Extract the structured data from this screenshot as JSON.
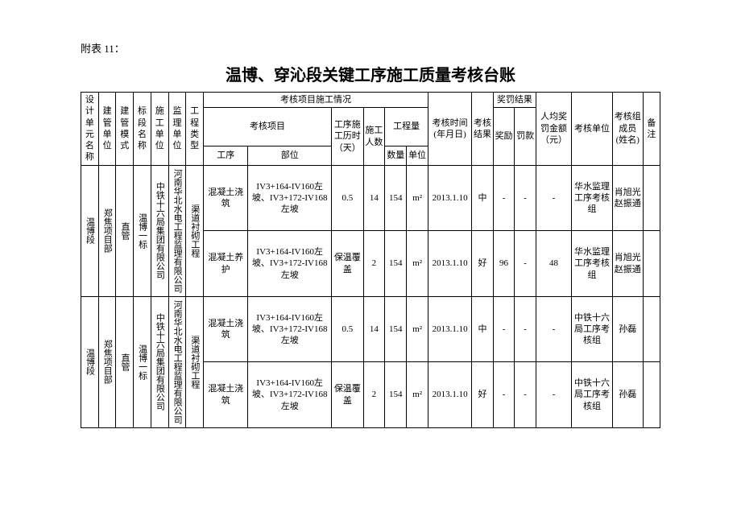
{
  "attachment": "附表 11：",
  "title": "温博、穿沁段关键工序施工质量考核台账",
  "headers": {
    "c1": "设计单元名称",
    "c2": "建管单位",
    "c3": "建管模式",
    "c4": "标段名称",
    "c5": "施工单位",
    "c6": "监理单位",
    "c7": "工程类型",
    "grp1": "考核项目施工情况",
    "c8_grp": "考核项目",
    "c8a": "工序",
    "c8b": "部位",
    "c9": "工序施工历时（天）",
    "c10": "施工人数",
    "c11_grp": "工程量",
    "c11a": "数量",
    "c11b": "单位",
    "c12": "考核时间(年月日)",
    "c13": "考核结果",
    "c14_grp": "奖罚结果",
    "c14a": "奖励",
    "c14b": "罚款",
    "c15": "人均奖罚金额（元）",
    "c16": "考核单位",
    "c17": "考核组成员(姓名)",
    "c18": "备注"
  },
  "rows": [
    {
      "design_unit": "温博段",
      "mgmt_unit": "郑焦项目部",
      "mgmt_mode": "直管",
      "section": "温博一标",
      "contractor": "中铁十六局集团有限公司",
      "supervisor": "河南华北水电工程监理有限公司",
      "proj_type": "渠道衬砌工程",
      "procedure": "混凝土浇筑",
      "position": "IV3+164-IV160左坡、IV3+172-IV168 左坡",
      "duration": "0.5",
      "workers": "14",
      "qty": "154",
      "unit": "m²",
      "date": "2013.1.10",
      "result": "中",
      "reward": "-",
      "penalty": "-",
      "avg": "-",
      "org": "华水监理工序考核组",
      "members": "肖旭光赵振通",
      "remark": ""
    },
    {
      "procedure": "混凝土养护",
      "position": "IV3+164-IV160左坡、IV3+172-IV168 左坡",
      "duration": "保温覆盖",
      "workers": "2",
      "qty": "154",
      "unit": "m²",
      "date": "2013.1.10",
      "result": "好",
      "reward": "96",
      "penalty": "-",
      "avg": "48",
      "org": "华水监理工序考核组",
      "members": "肖旭光赵振通",
      "remark": ""
    },
    {
      "design_unit": "温博段",
      "mgmt_unit": "郑焦项目部",
      "mgmt_mode": "直管",
      "section": "温博一标",
      "contractor": "中铁十六局集团有限公司",
      "supervisor": "河南华北水电工程监理有限公司",
      "proj_type": "渠道衬砌工程",
      "procedure": "混凝土浇筑",
      "position": "IV3+164-IV160左坡、IV3+172-IV168 左坡",
      "duration": "0.5",
      "workers": "14",
      "qty": "154",
      "unit": "m²",
      "date": "2013.1.10",
      "result": "中",
      "reward": "-",
      "penalty": "-",
      "avg": "-",
      "org": "中铁十六局工序考核组",
      "members": "孙磊",
      "remark": ""
    },
    {
      "procedure": "混凝土浇筑",
      "position": "IV3+164-IV160左坡、IV3+172-IV168 左坡",
      "duration": "保温覆盖",
      "workers": "2",
      "qty": "154",
      "unit": "m²",
      "date": "2013.1.10",
      "result": "好",
      "reward": "-",
      "penalty": "-",
      "avg": "-",
      "org": "中铁十六局工序考核组",
      "members": "孙磊",
      "remark": ""
    }
  ]
}
